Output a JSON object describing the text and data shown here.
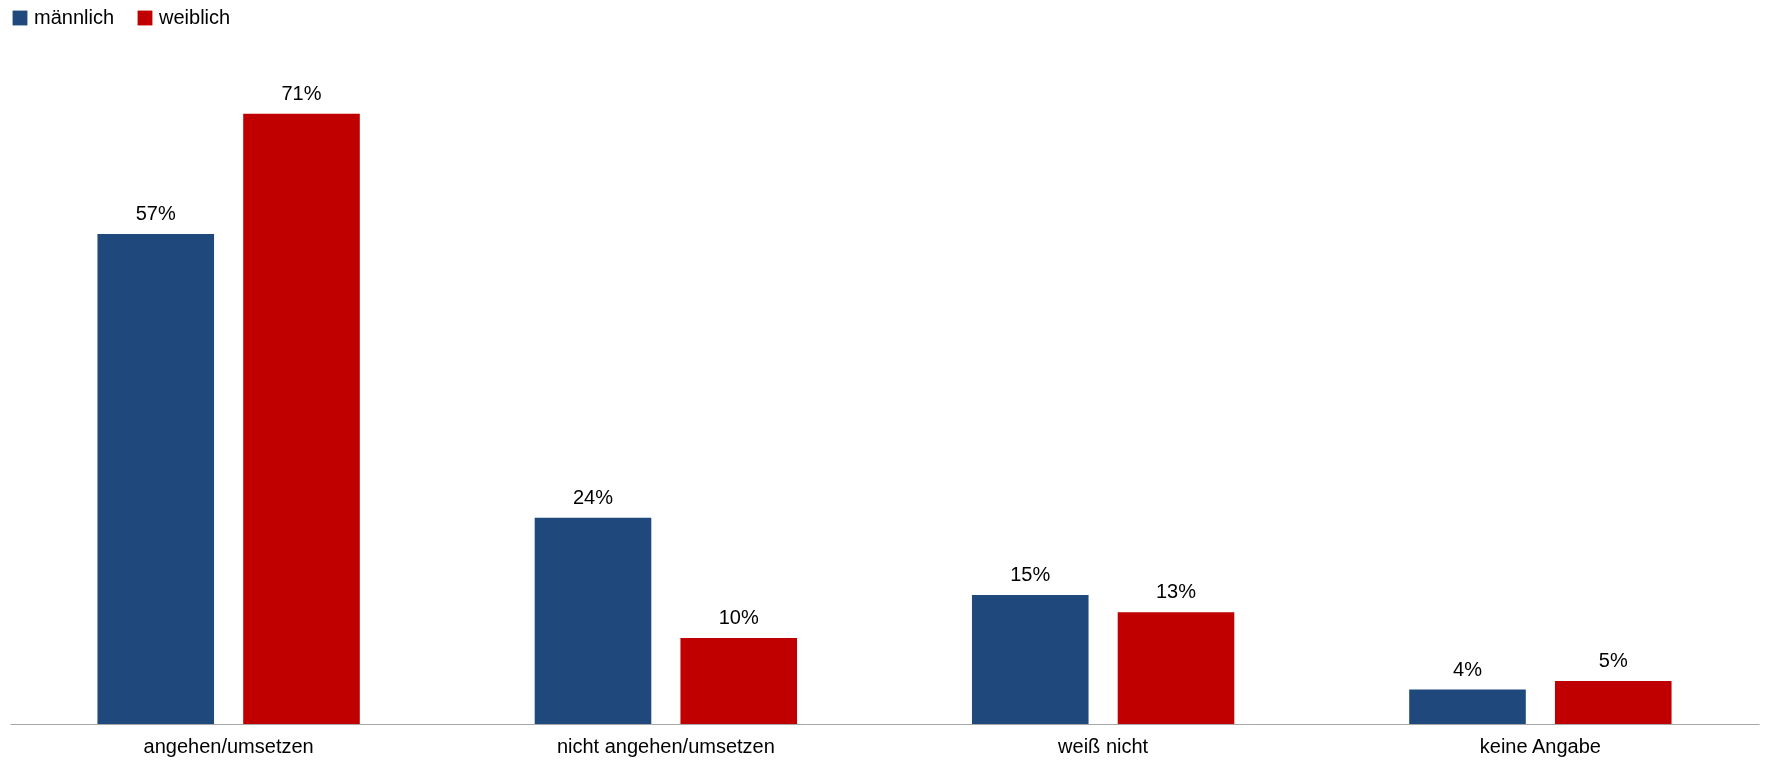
{
  "chart_data": {
    "type": "bar",
    "categories": [
      "angehen/umsetzen",
      "nicht angehen/umsetzen",
      "weiß nicht",
      "keine Angabe"
    ],
    "legend": "top",
    "series": [
      {
        "name": "männlich",
        "color": "#1f497d",
        "values": [
          57,
          24,
          15,
          4
        ],
        "value_labels": [
          "57%",
          "24%",
          "15%",
          "4%"
        ]
      },
      {
        "name": "weiblich",
        "color": "#c00000",
        "values": [
          71,
          10,
          13,
          5
        ],
        "value_labels": [
          "71%",
          "10%",
          "13%",
          "5%"
        ]
      }
    ]
  }
}
